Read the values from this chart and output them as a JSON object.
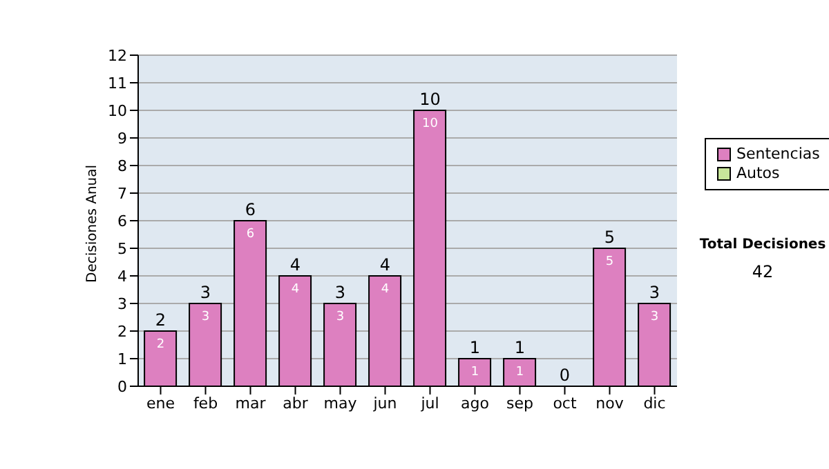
{
  "chart_data": {
    "type": "bar",
    "ylabel": "Decisiones Anual",
    "categories": [
      "ene",
      "feb",
      "mar",
      "abr",
      "may",
      "jun",
      "jul",
      "ago",
      "sep",
      "oct",
      "nov",
      "dic"
    ],
    "series": [
      {
        "name": "Sentencias",
        "color": "#dd80c0",
        "values": [
          2,
          3,
          6,
          4,
          3,
          4,
          10,
          1,
          1,
          0,
          5,
          3
        ],
        "value_labels": [
          "2",
          "3",
          "6",
          "4",
          "3",
          "4",
          "10",
          "1",
          "1",
          null,
          "5",
          "3"
        ]
      },
      {
        "name": "Autos",
        "color": "#c8e69a",
        "values": [
          0,
          0,
          0,
          0,
          0,
          0,
          0,
          0,
          0,
          0,
          0,
          0
        ]
      }
    ],
    "stacked": true,
    "totals": [
      "2",
      "3",
      "6",
      "4",
      "3",
      "4",
      "10",
      "1",
      "1",
      "0",
      "5",
      "3"
    ],
    "ylim": [
      0,
      12
    ],
    "yticks": [
      0,
      1,
      2,
      3,
      4,
      5,
      6,
      7,
      8,
      9,
      10,
      11,
      12
    ],
    "grid": "y",
    "legend": "right",
    "annotations": [
      "Total Decisiones",
      "42"
    ]
  }
}
